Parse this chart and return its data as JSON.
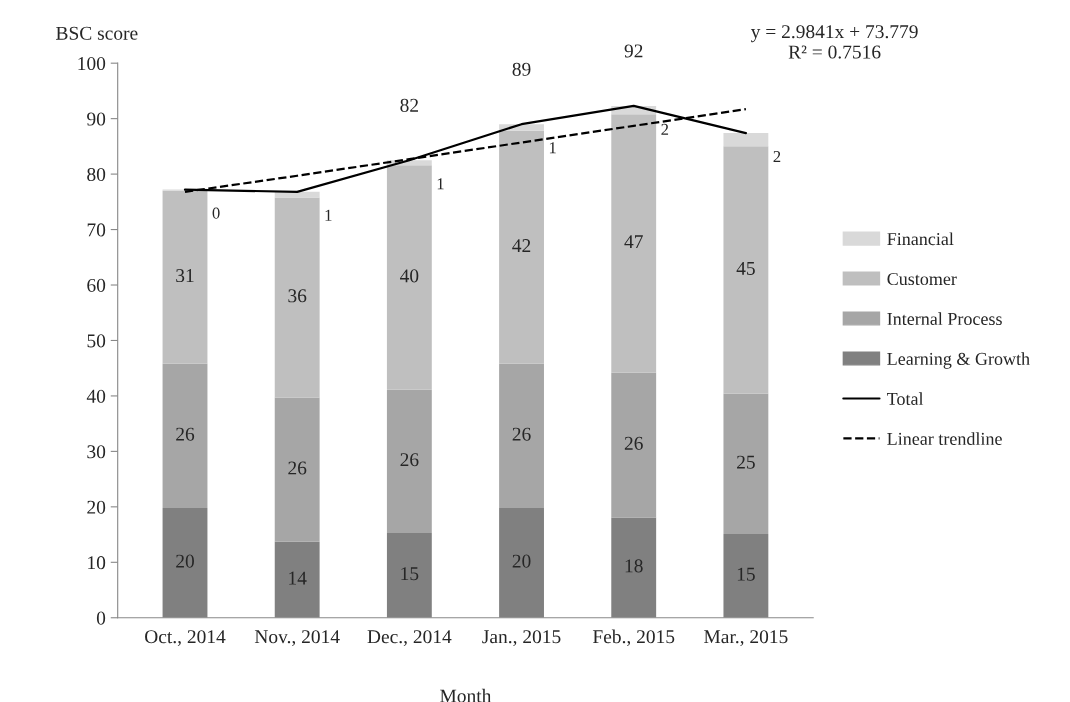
{
  "chart_data": {
    "type": "bar",
    "stacked": true,
    "xlabel": "Month",
    "ylabel": "BSC score",
    "categories": [
      "Oct., 2014",
      "Nov., 2014",
      "Dec., 2014",
      "Jan., 2015",
      "Feb., 2015",
      "Mar., 2015"
    ],
    "series": [
      {
        "name": "Learning & Growth",
        "color": "#808080",
        "values": [
          19.8,
          13.7,
          15.3,
          19.8,
          18.1,
          15.1
        ],
        "value_labels": [
          "20",
          "14",
          "15",
          "20",
          "18",
          "15"
        ]
      },
      {
        "name": "Internal Process",
        "color": "#a6a6a6",
        "values": [
          26,
          26,
          25.8,
          26,
          26.1,
          25.3
        ],
        "value_labels": [
          "26",
          "26",
          "26",
          "26",
          "26",
          "25"
        ]
      },
      {
        "name": "Customer",
        "color": "#bfbfbf",
        "values": [
          31.2,
          36.1,
          40.5,
          42,
          46.6,
          44.6
        ],
        "value_labels": [
          "31",
          "36",
          "40",
          "42",
          "47",
          "45"
        ]
      },
      {
        "name": "Financial",
        "color": "#d9d9d9",
        "values": [
          0.2,
          1,
          0.9,
          1.2,
          1.5,
          2.4
        ],
        "value_labels": [
          "0",
          "1",
          "1",
          "1",
          "2",
          "2"
        ]
      },
      {
        "name": "Total",
        "type": "line",
        "color": "#000000",
        "line_style": "solid",
        "values": [
          77.2,
          76.8,
          82.5,
          89,
          92.3,
          87.4
        ],
        "value_labels": [
          null,
          null,
          "82",
          "89",
          "92",
          null
        ]
      },
      {
        "name": "Linear trendline",
        "type": "line",
        "color": "#000000",
        "line_style": "dashed",
        "values": [
          76.8,
          79.7,
          82.7,
          85.7,
          88.7,
          91.7
        ]
      }
    ],
    "annotations": [
      "y = 2.9841x + 73.779\nR² = 0.7516"
    ],
    "ylim": [
      0,
      100
    ],
    "yticks": [
      0,
      10,
      20,
      30,
      40,
      50,
      60,
      70,
      80,
      90,
      100
    ],
    "grid": false,
    "legend": "right"
  }
}
